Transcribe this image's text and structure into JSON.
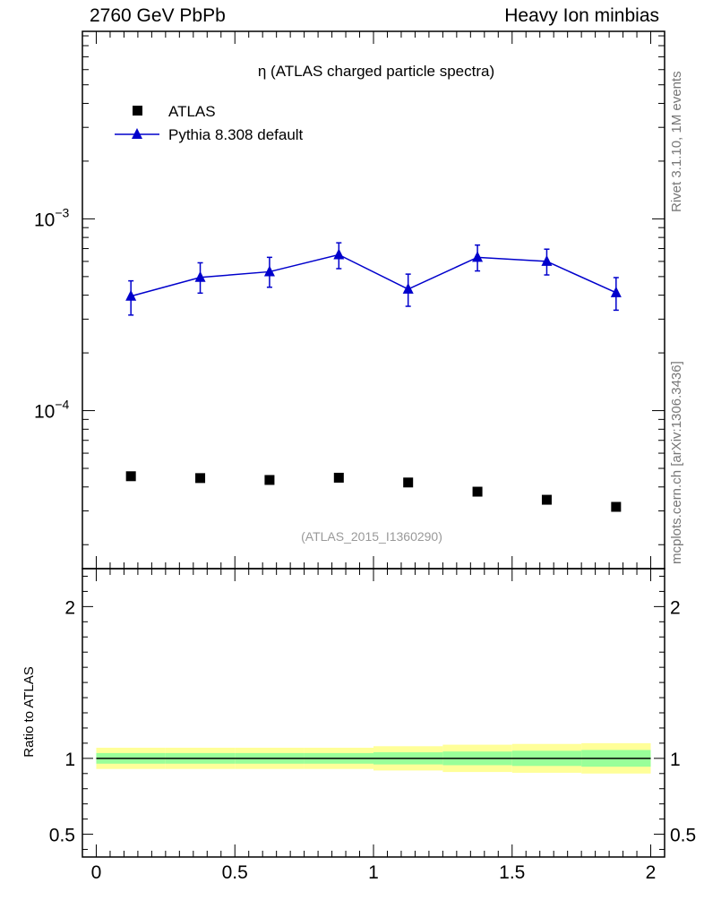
{
  "header": {
    "left": "2760 GeV PbPb",
    "right": "Heavy Ion minbias"
  },
  "side": {
    "rivet": "Rivet 3.1.10,  1M events",
    "mcplots": "mcplots.cern.ch [arXiv:1306.3436]"
  },
  "chart_data": [
    {
      "type": "scatter",
      "title": "η (ATLAS charged particle spectra)",
      "watermark": "(ATLAS_2015_I1360290)",
      "yscale": "log",
      "xlim": [
        -0.05,
        2.05
      ],
      "ylim": [
        1.5e-05,
        0.0095
      ],
      "major_yticks": [
        {
          "value": 0.001,
          "base": "10",
          "exp": "−3"
        },
        {
          "value": 0.0001,
          "base": "10",
          "exp": "−4"
        }
      ],
      "legend_position": "top-left",
      "series": [
        {
          "name": "ATLAS",
          "marker": "square",
          "color": "#000000",
          "x": [
            0.125,
            0.375,
            0.625,
            0.875,
            1.125,
            1.375,
            1.625,
            1.875
          ],
          "values": [
            4.55e-05,
            4.45e-05,
            4.35e-05,
            4.47e-05,
            4.22e-05,
            3.78e-05,
            3.43e-05,
            3.15e-05
          ]
        },
        {
          "name": "Pythia 8.308 default",
          "marker": "triangle",
          "color": "#0000cc",
          "x": [
            0.125,
            0.375,
            0.625,
            0.875,
            1.125,
            1.375,
            1.625,
            1.875
          ],
          "values": [
            0.000395,
            0.000495,
            0.00053,
            0.00065,
            0.00043,
            0.00063,
            0.0006,
            0.000412
          ],
          "err_low": [
            8e-05,
            8.5e-05,
            9e-05,
            0.0001,
            8e-05,
            9.5e-05,
            9e-05,
            7.8e-05
          ],
          "err_high": [
            8e-05,
            9.5e-05,
            0.0001,
            0.0001,
            8.5e-05,
            0.0001,
            9.5e-05,
            8.2e-05
          ]
        }
      ]
    },
    {
      "type": "line",
      "ylabel": "Ratio to ATLAS",
      "xlim": [
        -0.05,
        2.05
      ],
      "ylim": [
        0.35,
        2.25
      ],
      "yticks": [
        0.5,
        1,
        2
      ],
      "ytick_labels": [
        "0.5",
        "1",
        "2"
      ],
      "xticks": [
        0,
        0.5,
        1,
        1.5,
        2
      ],
      "xtick_labels": [
        "0",
        "0.5",
        "1",
        "1.5",
        "2"
      ],
      "reference": 1,
      "bins": [
        0,
        0.25,
        0.5,
        0.75,
        1.0,
        1.25,
        1.5,
        1.75,
        2.0
      ],
      "band_yellow": [
        [
          0.93,
          1.07
        ],
        [
          0.93,
          1.07
        ],
        [
          0.93,
          1.07
        ],
        [
          0.93,
          1.07
        ],
        [
          0.92,
          1.08
        ],
        [
          0.91,
          1.09
        ],
        [
          0.905,
          1.095
        ],
        [
          0.9,
          1.1
        ]
      ],
      "band_green": [
        [
          0.965,
          1.035
        ],
        [
          0.965,
          1.035
        ],
        [
          0.965,
          1.035
        ],
        [
          0.965,
          1.035
        ],
        [
          0.96,
          1.04
        ],
        [
          0.955,
          1.045
        ],
        [
          0.95,
          1.05
        ],
        [
          0.945,
          1.055
        ]
      ],
      "band_colors": {
        "yellow": "#ffff99",
        "green": "#99ff99"
      }
    }
  ]
}
